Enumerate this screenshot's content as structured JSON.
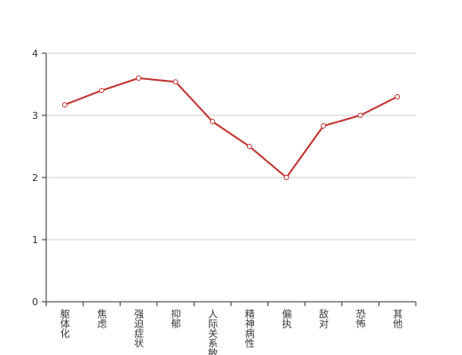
{
  "chart_data": {
    "type": "line",
    "categories": [
      "躯体化",
      "焦虑",
      "强迫症状",
      "抑郁",
      "人际关系敏感",
      "精神病性",
      "偏执",
      "敌对",
      "恐怖",
      "其他"
    ],
    "values": [
      3.17,
      3.4,
      3.6,
      3.54,
      2.9,
      2.5,
      2.0,
      2.83,
      3.0,
      3.3
    ],
    "color": "#c23531",
    "ylim": [
      0,
      4
    ],
    "yticks": [
      0,
      1,
      2,
      3,
      4
    ],
    "grid": true
  }
}
